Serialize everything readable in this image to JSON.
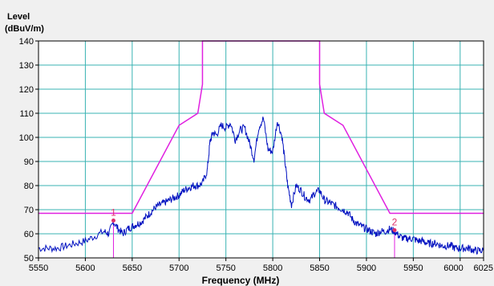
{
  "chart_data": {
    "type": "line",
    "ylabel_line1": "Level",
    "ylabel_line2": "(dBuV/m)",
    "xlabel": "Frequency (MHz)",
    "xlim": [
      5550,
      6025
    ],
    "ylim": [
      50,
      140
    ],
    "x_ticks": [
      5550,
      5600,
      5650,
      5700,
      5750,
      5800,
      5850,
      5900,
      5950,
      6000,
      6025
    ],
    "y_ticks": [
      50,
      60,
      70,
      80,
      90,
      100,
      110,
      120,
      130,
      140
    ],
    "grid": true,
    "colors": {
      "trace": "#0010c0",
      "mask": "#e020e0",
      "marker": "#e0306a",
      "grid": "#39b3b3",
      "plot_bg": "#ffffff"
    },
    "mask": [
      [
        5550,
        68.5
      ],
      [
        5650,
        68.5
      ],
      [
        5700,
        105
      ],
      [
        5720,
        110
      ],
      [
        5725,
        122
      ],
      [
        5725,
        140
      ],
      [
        5850,
        140
      ],
      [
        5850,
        122
      ],
      [
        5855,
        110
      ],
      [
        5875,
        105
      ],
      [
        5925,
        68.5
      ],
      [
        6025,
        68.5
      ]
    ],
    "trace": [
      [
        5550,
        54
      ],
      [
        5560,
        54
      ],
      [
        5570,
        54
      ],
      [
        5580,
        55
      ],
      [
        5590,
        56
      ],
      [
        5600,
        57
      ],
      [
        5610,
        59
      ],
      [
        5620,
        61
      ],
      [
        5625,
        60
      ],
      [
        5630,
        65
      ],
      [
        5635,
        62
      ],
      [
        5640,
        60
      ],
      [
        5645,
        62
      ],
      [
        5650,
        63
      ],
      [
        5655,
        64
      ],
      [
        5660,
        65
      ],
      [
        5665,
        67
      ],
      [
        5670,
        69
      ],
      [
        5675,
        71
      ],
      [
        5680,
        72
      ],
      [
        5685,
        73
      ],
      [
        5690,
        74
      ],
      [
        5695,
        75
      ],
      [
        5700,
        76
      ],
      [
        5705,
        78
      ],
      [
        5710,
        79
      ],
      [
        5715,
        80
      ],
      [
        5720,
        80
      ],
      [
        5725,
        81
      ],
      [
        5730,
        86
      ],
      [
        5733,
        98
      ],
      [
        5736,
        102
      ],
      [
        5740,
        101
      ],
      [
        5745,
        105
      ],
      [
        5750,
        104
      ],
      [
        5755,
        106
      ],
      [
        5760,
        99
      ],
      [
        5765,
        103
      ],
      [
        5770,
        104
      ],
      [
        5775,
        98
      ],
      [
        5780,
        91
      ],
      [
        5785,
        104
      ],
      [
        5790,
        108
      ],
      [
        5795,
        95
      ],
      [
        5800,
        94
      ],
      [
        5805,
        107
      ],
      [
        5810,
        100
      ],
      [
        5813,
        90
      ],
      [
        5816,
        80
      ],
      [
        5820,
        72
      ],
      [
        5825,
        80
      ],
      [
        5830,
        78
      ],
      [
        5835,
        75
      ],
      [
        5840,
        74
      ],
      [
        5845,
        77
      ],
      [
        5850,
        78
      ],
      [
        5855,
        74
      ],
      [
        5860,
        73
      ],
      [
        5865,
        72
      ],
      [
        5870,
        71
      ],
      [
        5875,
        70
      ],
      [
        5880,
        69
      ],
      [
        5885,
        66
      ],
      [
        5890,
        64
      ],
      [
        5895,
        63
      ],
      [
        5900,
        62
      ],
      [
        5905,
        61
      ],
      [
        5910,
        60
      ],
      [
        5915,
        61
      ],
      [
        5920,
        61
      ],
      [
        5925,
        62
      ],
      [
        5930,
        61
      ],
      [
        5935,
        59
      ],
      [
        5940,
        58
      ],
      [
        5945,
        58
      ],
      [
        5950,
        58
      ],
      [
        5955,
        57
      ],
      [
        5960,
        57
      ],
      [
        5965,
        56
      ],
      [
        5970,
        56
      ],
      [
        5975,
        56
      ],
      [
        5980,
        55
      ],
      [
        5985,
        55
      ],
      [
        5990,
        55
      ],
      [
        5995,
        54
      ],
      [
        6000,
        54
      ],
      [
        6005,
        54
      ],
      [
        6010,
        54
      ],
      [
        6015,
        53
      ],
      [
        6020,
        53
      ],
      [
        6025,
        53
      ]
    ],
    "markers": [
      {
        "label": "1",
        "x": 5630,
        "y": 65.5
      },
      {
        "label": "2",
        "x": 5930,
        "y": 61.5
      }
    ]
  }
}
